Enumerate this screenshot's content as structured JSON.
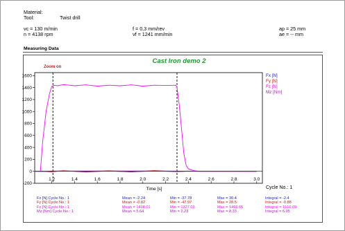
{
  "header": {
    "material_label": "Material:",
    "tool_label": "Tool:",
    "tool_value": "Twist drill",
    "vc": "vc = 130 m/min",
    "n": "n = 4138 rpm",
    "f": "f = 0,3 mm/rev",
    "vf": "vf = 1241 mm/min",
    "ap": "ap = 25 mm",
    "ae": "ae = -- mm"
  },
  "section_title": "Measuring Data",
  "chart_data": {
    "type": "line",
    "title": "Cast Iron demo 2",
    "annotation": "Zoom on",
    "xlabel": "Time [s]",
    "ylabel": "",
    "xlim": [
      1.05,
      3.05
    ],
    "ylim": [
      -200,
      1650
    ],
    "x_ticks": [
      "1.2",
      "1.4",
      "1.6",
      "1.8",
      "2.0",
      "2.2",
      "2.4",
      "2.6",
      "2.8",
      "3.0"
    ],
    "y_ticks": [
      "1600",
      "1400",
      "1200",
      "1000",
      "800",
      "600",
      "400",
      "200",
      "0",
      "-200"
    ],
    "markers_x": [
      1.21,
      2.3
    ],
    "grid": false,
    "legend_position": "top-right",
    "cycle_label": "Cycle No.: 1",
    "series": [
      {
        "name": "Fx [N]",
        "color": "#1a1ad6",
        "x": [
          1.05,
          1.1,
          1.2,
          1.3,
          1.5,
          1.7,
          1.9,
          2.1,
          2.3,
          2.4,
          2.5,
          2.7,
          2.9,
          3.0
        ],
        "y": [
          0,
          -2,
          2,
          5,
          -3,
          4,
          -5,
          3,
          -2,
          2,
          0,
          1,
          0,
          0
        ]
      },
      {
        "name": "Fy [N]",
        "color": "#d01818",
        "x": [
          1.05,
          1.1,
          1.2,
          1.3,
          1.5,
          1.7,
          1.9,
          2.1,
          2.3,
          2.4,
          2.5,
          2.7,
          2.9,
          3.0
        ],
        "y": [
          0,
          3,
          -8,
          10,
          -12,
          8,
          -10,
          12,
          -6,
          4,
          2,
          0,
          0,
          0
        ]
      },
      {
        "name": "Fz [N]",
        "color": "#ff00ff",
        "x": [
          1.05,
          1.1,
          1.12,
          1.15,
          1.18,
          1.2,
          1.22,
          1.25,
          1.3,
          1.4,
          1.5,
          1.6,
          1.7,
          1.8,
          1.9,
          2.0,
          2.1,
          2.2,
          2.29,
          2.3,
          2.32,
          2.34,
          2.36,
          2.38,
          2.4,
          2.45,
          2.5,
          2.7,
          3.0
        ],
        "y": [
          0,
          5,
          500,
          1000,
          1300,
          1420,
          1440,
          1430,
          1450,
          1430,
          1445,
          1425,
          1440,
          1430,
          1445,
          1425,
          1440,
          1435,
          1440,
          1400,
          1100,
          700,
          300,
          100,
          40,
          10,
          0,
          0,
          0
        ]
      },
      {
        "name": "Mz [Nm]",
        "color": "#b020c0",
        "x": [
          1.05,
          1.2,
          1.5,
          2.0,
          2.3,
          2.5,
          3.0
        ],
        "y": [
          0,
          5,
          6,
          6,
          5,
          0,
          0
        ]
      }
    ]
  },
  "stats_table": {
    "rows": [
      {
        "label": "Fx [N] Cycle No.: 1",
        "mean": "Mean = -2.24",
        "min": "Min = -37.78",
        "max": "Max = 30.4",
        "integral": "Integral = -2.4",
        "color": "#1a1ad6"
      },
      {
        "label": "Fy [N] Cycle No.: 1",
        "mean": "Mean = -0.82",
        "min": "Min = -47.97",
        "max": "Max = 28.5",
        "integral": "Integral = -0.88",
        "color": "#d01818"
      },
      {
        "label": "Fz [N] Cycle No.: 1",
        "mean": "Mean = 1408.01",
        "min": "Min = 1327.03",
        "max": "Max = 1493.65",
        "integral": "Integral = 1510.09",
        "color": "#ff00ff"
      },
      {
        "label": "Mz [Nm] Cycle No.: 1",
        "mean": "Mean = 5.64",
        "min": "Min = 2.23",
        "max": "Max = 8.33",
        "integral": "Integral = 6.05",
        "color": "#b020c0"
      }
    ]
  }
}
